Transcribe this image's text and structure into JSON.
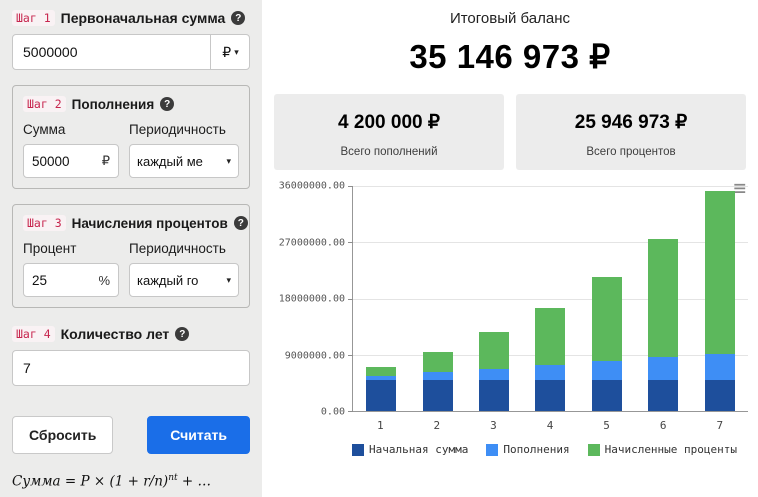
{
  "icons": {
    "help": "?",
    "caret": "▾",
    "menu": "≡"
  },
  "left_panel": {
    "step1": {
      "badge": "Шаг 1",
      "label": "Первоначальная сумма",
      "value": "5000000",
      "currency": "₽"
    },
    "step2": {
      "badge": "Шаг 2",
      "label": "Пополнения",
      "amount_label": "Сумма",
      "amount_value": "50000",
      "amount_suffix": "₽",
      "period_label": "Периодичность",
      "period_value": "каждый ме"
    },
    "step3": {
      "badge": "Шаг 3",
      "label": "Начисления процентов",
      "percent_label": "Процент",
      "percent_value": "25",
      "percent_suffix": "%",
      "period_label": "Периодичность",
      "period_value": "каждый го"
    },
    "step4": {
      "badge": "Шаг 4",
      "label": "Количество лет",
      "value": "7"
    },
    "reset_button": "Сбросить",
    "calc_button": "Считать",
    "formula_prefix": "Сумма = P × (1 + r/n)",
    "formula_sup": "nt",
    "formula_suffix": " + …"
  },
  "results": {
    "title": "Итоговый баланс",
    "total": "35 146 973 ₽",
    "cards": [
      {
        "value": "4 200 000 ₽",
        "caption": "Всего пополнений"
      },
      {
        "value": "25 946 973 ₽",
        "caption": "Всего процентов"
      }
    ]
  },
  "chart_data": {
    "type": "bar",
    "stacked": true,
    "title": "",
    "xlabel": "",
    "ylabel": "",
    "categories": [
      "1",
      "2",
      "3",
      "4",
      "5",
      "6",
      "7"
    ],
    "series": [
      {
        "name": "Начальная сумма",
        "color": "#1e4f9c",
        "values": [
          5000000,
          5000000,
          5000000,
          5000000,
          5000000,
          5000000,
          5000000
        ]
      },
      {
        "name": "Пополнения",
        "color": "#3e8ef5",
        "values": [
          600000,
          1200000,
          1800000,
          2400000,
          3000000,
          3600000,
          4200000
        ]
      },
      {
        "name": "Начисленные проценты",
        "color": "#5cb85c",
        "values": [
          1400000,
          3300000,
          5825000,
          9131250,
          13414063,
          18917578,
          25946973
        ]
      }
    ],
    "totals": [
      7000000,
      9500000,
      12625000,
      16531250,
      21414063,
      27517578,
      35146973
    ],
    "y_ticks": [
      "36000000.00",
      "27000000.00",
      "18000000.00",
      "9000000.00",
      "0.00"
    ],
    "ylim": [
      0,
      36000000
    ],
    "grid": true,
    "legend_position": "bottom"
  }
}
